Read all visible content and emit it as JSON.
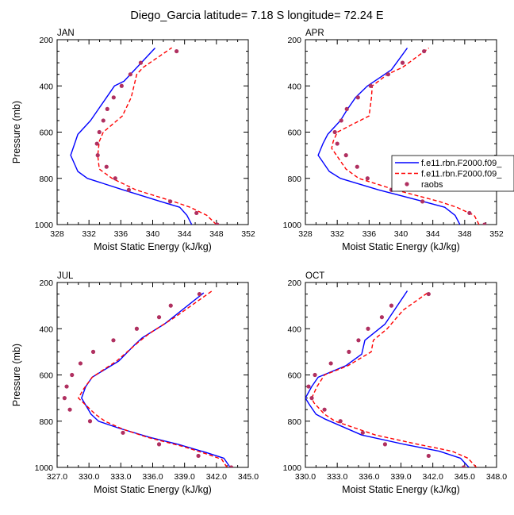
{
  "title": "Diego_Garcia  latitude= 7.18 S longitude= 72.24 E",
  "legend": {
    "entries": [
      {
        "label": "f.e11.rbn.F2000.f09_",
        "color": "#0000ff",
        "dash": "solid"
      },
      {
        "label": "f.e11.rbn.F2000.f09_",
        "color": "#ff0000",
        "dash": "dashed"
      },
      {
        "label": "raobs",
        "color": "#b03060",
        "dash": "marker"
      }
    ]
  },
  "chart_data": [
    {
      "type": "line",
      "panel_label": "JAN",
      "xlabel": "Moist Static Energy (kJ/kg)",
      "ylabel": "Pressure (mb)",
      "xlim": [
        328,
        352
      ],
      "ylim": [
        1000,
        200
      ],
      "y_inverted": true,
      "x_ticks": [
        328,
        332,
        336,
        340,
        344,
        348,
        352
      ],
      "x_ticklabels": [
        "328",
        "332",
        "336",
        "340",
        "344",
        "348",
        "352"
      ],
      "y_ticks": [
        200,
        400,
        600,
        800,
        1000
      ],
      "series": [
        {
          "color": "#0000ff",
          "style": "solid",
          "points": [
            [
              344.9,
              1000
            ],
            [
              344.3,
              960
            ],
            [
              343.4,
              925
            ],
            [
              341.0,
              900
            ],
            [
              336.3,
              850
            ],
            [
              331.8,
              800
            ],
            [
              330.6,
              770
            ],
            [
              329.7,
              700
            ],
            [
              330.2,
              650
            ],
            [
              330.6,
              610
            ],
            [
              332.2,
              550
            ],
            [
              333.2,
              500
            ],
            [
              334.2,
              450
            ],
            [
              335.2,
              400
            ],
            [
              336.4,
              380
            ],
            [
              340.3,
              236
            ]
          ]
        },
        {
          "color": "#ff0000",
          "style": "dashed",
          "points": [
            [
              348.0,
              1000
            ],
            [
              346.8,
              960
            ],
            [
              344.7,
              925
            ],
            [
              342.6,
              900
            ],
            [
              337.9,
              850
            ],
            [
              334.9,
              800
            ],
            [
              333.3,
              760
            ],
            [
              333.1,
              700
            ],
            [
              333.3,
              640
            ],
            [
              333.8,
              600
            ],
            [
              336.2,
              530
            ],
            [
              337.3,
              450
            ],
            [
              338.0,
              350
            ],
            [
              338.8,
              320
            ],
            [
              342.4,
              235
            ]
          ]
        },
        {
          "color": "#b03060",
          "style": "marker",
          "points": [
            [
              348.1,
              1000
            ],
            [
              345.5,
              950
            ],
            [
              342.2,
              900
            ],
            [
              337.0,
              850
            ],
            [
              335.3,
              800
            ],
            [
              334.2,
              750
            ],
            [
              333.1,
              700
            ],
            [
              333.0,
              650
            ],
            [
              333.3,
              600
            ],
            [
              333.8,
              550
            ],
            [
              334.3,
              500
            ],
            [
              335.1,
              450
            ],
            [
              336.1,
              400
            ],
            [
              337.2,
              350
            ],
            [
              338.5,
              300
            ],
            [
              343.0,
              250
            ]
          ]
        }
      ]
    },
    {
      "type": "line",
      "panel_label": "APR",
      "xlabel": "Moist Static Energy (kJ/kg)",
      "ylabel": "",
      "xlim": [
        328,
        352
      ],
      "ylim": [
        1000,
        200
      ],
      "y_inverted": true,
      "x_ticks": [
        328,
        332,
        336,
        340,
        344,
        348,
        352
      ],
      "x_ticklabels": [
        "328",
        "332",
        "336",
        "340",
        "344",
        "348",
        "352"
      ],
      "y_ticks": [
        200,
        400,
        600,
        800,
        1000
      ],
      "series": [
        {
          "color": "#0000ff",
          "style": "solid",
          "points": [
            [
              347.4,
              1000
            ],
            [
              346.8,
              960
            ],
            [
              345.5,
              925
            ],
            [
              342.8,
              900
            ],
            [
              337.2,
              850
            ],
            [
              332.4,
              800
            ],
            [
              331.0,
              770
            ],
            [
              329.6,
              700
            ],
            [
              330.2,
              650
            ],
            [
              330.8,
              610
            ],
            [
              332.4,
              550
            ],
            [
              333.3,
              500
            ],
            [
              334.3,
              450
            ],
            [
              335.8,
              400
            ],
            [
              338.8,
              330
            ],
            [
              340.8,
              236
            ]
          ]
        },
        {
          "color": "#ff0000",
          "style": "dashed",
          "points": [
            [
              349.8,
              1000
            ],
            [
              349.2,
              960
            ],
            [
              347.0,
              925
            ],
            [
              344.8,
              900
            ],
            [
              339.3,
              850
            ],
            [
              334.7,
              800
            ],
            [
              333.1,
              760
            ],
            [
              331.9,
              700
            ],
            [
              331.3,
              670
            ],
            [
              331.5,
              640
            ],
            [
              332.0,
              600
            ],
            [
              336.0,
              530
            ],
            [
              336.3,
              450
            ],
            [
              336.4,
              400
            ],
            [
              338.3,
              350
            ],
            [
              340.2,
              320
            ],
            [
              343.5,
              236
            ]
          ]
        },
        {
          "color": "#b03060",
          "style": "marker",
          "points": [
            [
              350.5,
              1000
            ],
            [
              348.6,
              950
            ],
            [
              342.7,
              900
            ],
            [
              338.8,
              850
            ],
            [
              335.8,
              800
            ],
            [
              334.5,
              750
            ],
            [
              333.1,
              700
            ],
            [
              332.0,
              650
            ],
            [
              331.7,
              600
            ],
            [
              332.5,
              550
            ],
            [
              333.2,
              500
            ],
            [
              334.6,
              450
            ],
            [
              336.2,
              400
            ],
            [
              338.4,
              350
            ],
            [
              340.2,
              300
            ],
            [
              342.9,
              250
            ]
          ]
        }
      ]
    },
    {
      "type": "line",
      "panel_label": "JUL",
      "xlabel": "Moist Static Energy (kJ/kg)",
      "ylabel": "Pressure (mb)",
      "xlim": [
        327,
        345
      ],
      "ylim": [
        1000,
        200
      ],
      "y_inverted": true,
      "x_ticks": [
        327,
        330,
        333,
        336,
        339,
        342,
        345
      ],
      "x_ticklabels": [
        "327.0",
        "330.0",
        "333.0",
        "336.0",
        "339.0",
        "342.0",
        "345.0"
      ],
      "y_ticks": [
        200,
        400,
        600,
        800,
        1000
      ],
      "series": [
        {
          "color": "#0000ff",
          "style": "solid",
          "points": [
            [
              343.3,
              1000
            ],
            [
              342.7,
              960
            ],
            [
              341.0,
              935
            ],
            [
              338.4,
              900
            ],
            [
              335.7,
              870
            ],
            [
              332.8,
              830
            ],
            [
              330.9,
              800
            ],
            [
              330.2,
              770
            ],
            [
              329.3,
              700
            ],
            [
              329.7,
              650
            ],
            [
              330.3,
              610
            ],
            [
              332.8,
              540
            ],
            [
              334.3,
              470
            ],
            [
              335.0,
              440
            ],
            [
              337.1,
              380
            ],
            [
              340.8,
              245
            ]
          ]
        },
        {
          "color": "#ff0000",
          "style": "dashed",
          "points": [
            [
              343.0,
              1000
            ],
            [
              342.5,
              965
            ],
            [
              341.3,
              945
            ],
            [
              338.9,
              910
            ],
            [
              335.5,
              870
            ],
            [
              333.2,
              835
            ],
            [
              331.5,
              800
            ],
            [
              330.6,
              770
            ],
            [
              329.0,
              700
            ],
            [
              329.5,
              660
            ],
            [
              330.3,
              610
            ],
            [
              332.6,
              540
            ],
            [
              334.6,
              460
            ],
            [
              335.7,
              420
            ],
            [
              338.1,
              350
            ],
            [
              341.6,
              236
            ]
          ]
        },
        {
          "color": "#b03060",
          "style": "marker",
          "points": [
            [
              343.4,
              1000
            ],
            [
              340.3,
              950
            ],
            [
              336.6,
              900
            ],
            [
              333.2,
              850
            ],
            [
              330.1,
              800
            ],
            [
              328.2,
              750
            ],
            [
              327.7,
              700
            ],
            [
              327.9,
              650
            ],
            [
              328.4,
              600
            ],
            [
              329.2,
              550
            ],
            [
              330.4,
              500
            ],
            [
              332.3,
              450
            ],
            [
              334.5,
              400
            ],
            [
              336.6,
              350
            ],
            [
              337.7,
              300
            ],
            [
              340.4,
              250
            ]
          ]
        }
      ]
    },
    {
      "type": "line",
      "panel_label": "OCT",
      "xlabel": "Moist Static Energy (kJ/kg)",
      "ylabel": "",
      "xlim": [
        330,
        348
      ],
      "ylim": [
        1000,
        200
      ],
      "y_inverted": true,
      "x_ticks": [
        330,
        333,
        336,
        339,
        342,
        345,
        348
      ],
      "x_ticklabels": [
        "330.0",
        "333.0",
        "336.0",
        "339.0",
        "342.0",
        "345.0",
        "348.0"
      ],
      "y_ticks": [
        200,
        400,
        600,
        800,
        1000
      ],
      "series": [
        {
          "color": "#0000ff",
          "style": "solid",
          "points": [
            [
              345.4,
              1000
            ],
            [
              344.6,
              960
            ],
            [
              342.6,
              930
            ],
            [
              339.3,
              900
            ],
            [
              335.3,
              860
            ],
            [
              331.8,
              790
            ],
            [
              331.0,
              770
            ],
            [
              330.4,
              730
            ],
            [
              330.0,
              700
            ],
            [
              330.6,
              650
            ],
            [
              331.2,
              610
            ],
            [
              333.8,
              560
            ],
            [
              335.3,
              510
            ],
            [
              335.6,
              450
            ],
            [
              337.5,
              380
            ],
            [
              339.6,
              236
            ]
          ]
        },
        {
          "color": "#ff0000",
          "style": "dashed",
          "points": [
            [
              346.1,
              1000
            ],
            [
              345.3,
              960
            ],
            [
              343.8,
              930
            ],
            [
              340.6,
              900
            ],
            [
              336.6,
              860
            ],
            [
              332.8,
              800
            ],
            [
              331.8,
              770
            ],
            [
              330.8,
              720
            ],
            [
              330.6,
              700
            ],
            [
              331.1,
              650
            ],
            [
              331.8,
              600
            ],
            [
              334.0,
              560
            ],
            [
              336.2,
              500
            ],
            [
              336.4,
              450
            ],
            [
              337.7,
              400
            ],
            [
              339.2,
              320
            ],
            [
              341.6,
              242
            ]
          ]
        },
        {
          "color": "#b03060",
          "style": "marker",
          "points": [
            [
              344.9,
              1000
            ],
            [
              341.6,
              950
            ],
            [
              337.5,
              900
            ],
            [
              335.4,
              850
            ],
            [
              333.3,
              800
            ],
            [
              331.8,
              750
            ],
            [
              330.6,
              700
            ],
            [
              330.3,
              650
            ],
            [
              330.9,
              600
            ],
            [
              332.4,
              550
            ],
            [
              334.1,
              500
            ],
            [
              335.0,
              450
            ],
            [
              335.9,
              400
            ],
            [
              337.2,
              350
            ],
            [
              338.1,
              300
            ],
            [
              341.6,
              250
            ]
          ]
        }
      ]
    }
  ]
}
